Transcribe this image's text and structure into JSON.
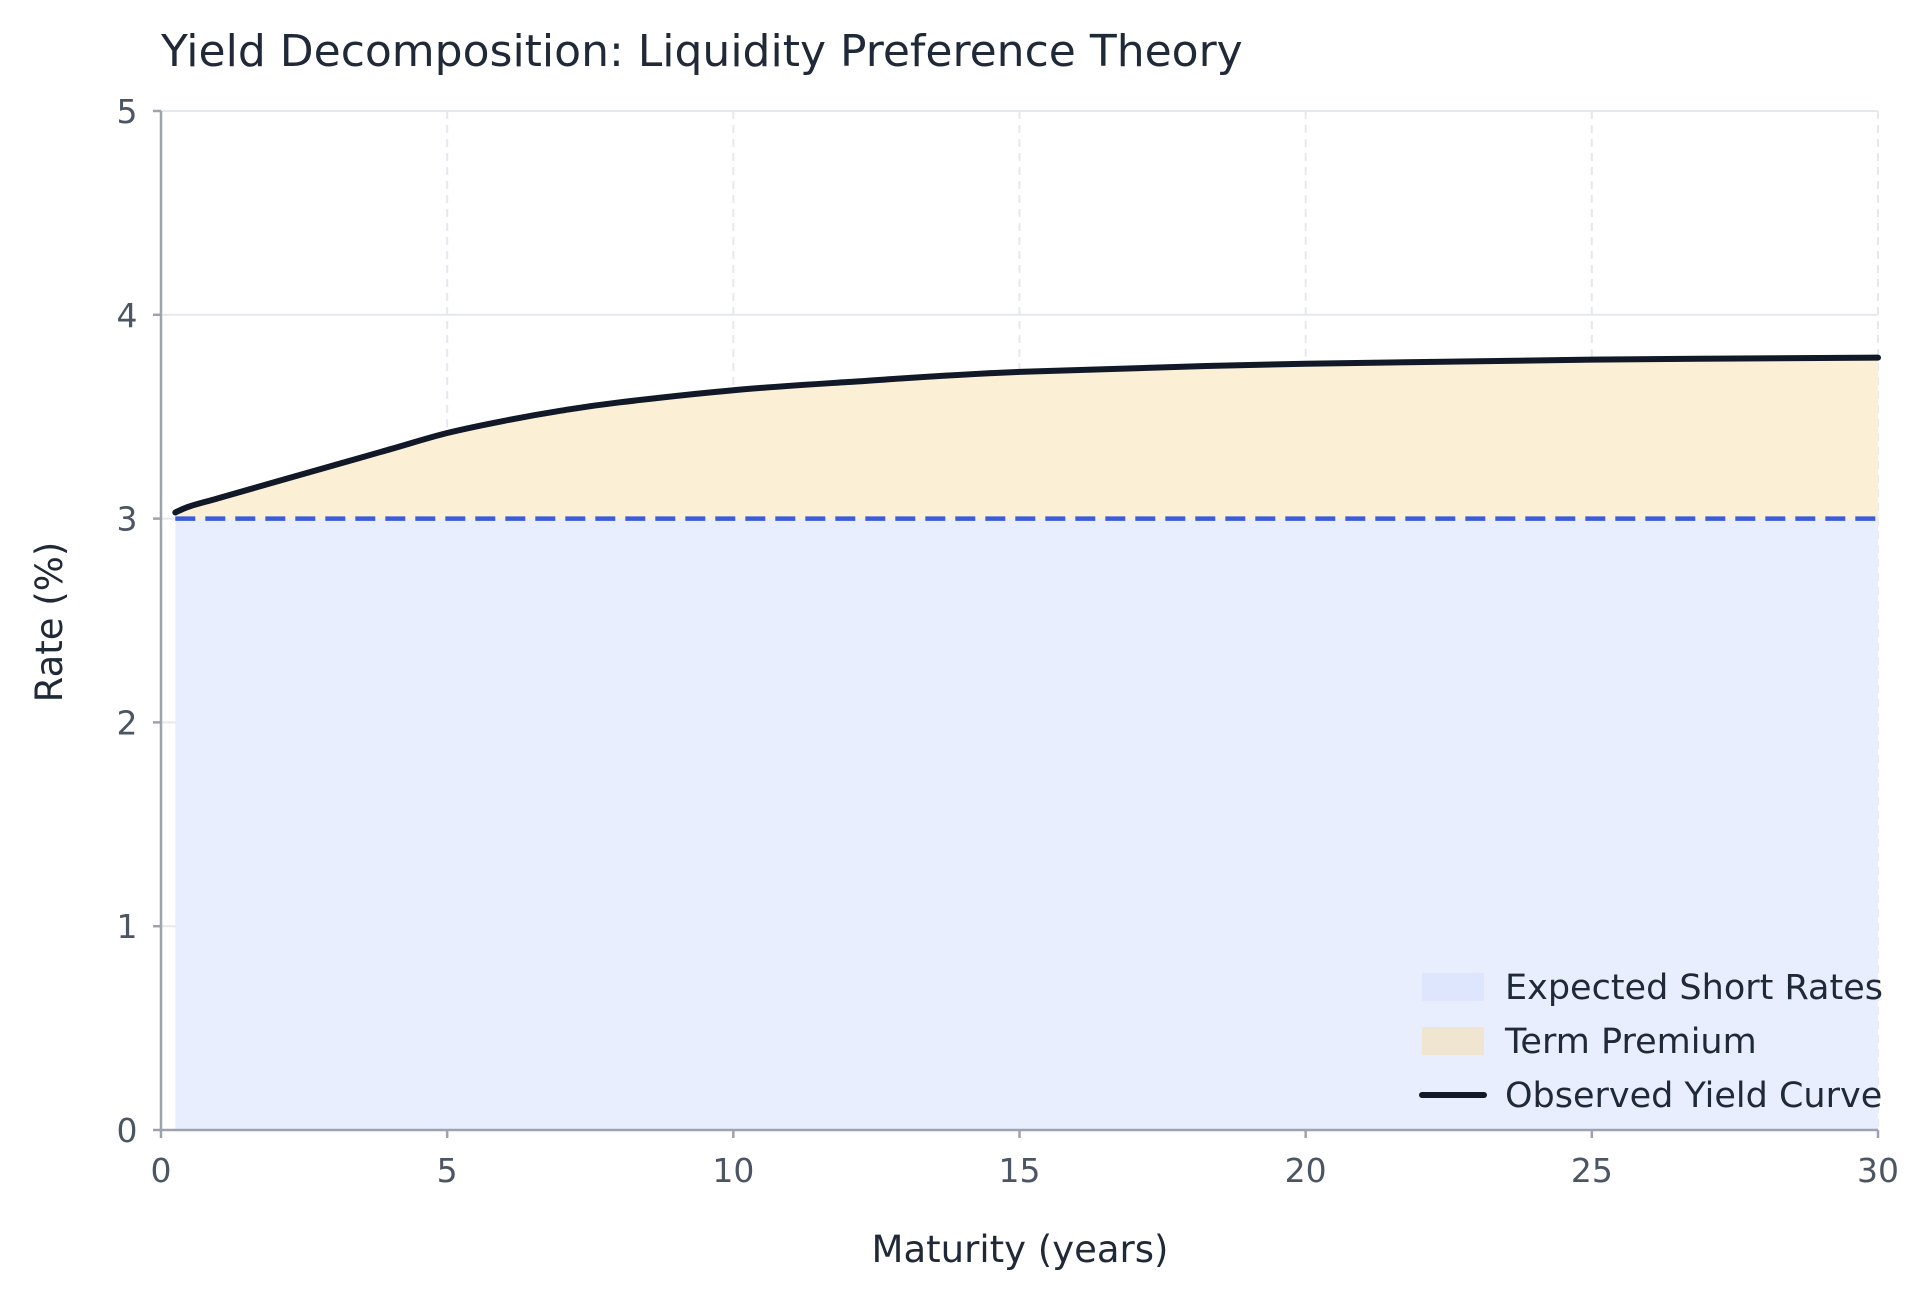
{
  "chart_data": {
    "type": "area",
    "title": "Yield Decomposition: Liquidity Preference Theory",
    "xlabel": "Maturity (years)",
    "ylabel": "Rate (%)",
    "xlim": [
      0,
      30
    ],
    "ylim": [
      0,
      5
    ],
    "xticks": [
      0,
      5,
      10,
      15,
      20,
      25,
      30
    ],
    "yticks": [
      0,
      1,
      2,
      3,
      4,
      5
    ],
    "grid": true,
    "legend_position": "bottom-right",
    "x": [
      0.25,
      0.5,
      1,
      2,
      3,
      4,
      5,
      6,
      7,
      8,
      10,
      12,
      15,
      20,
      25,
      30
    ],
    "series": [
      {
        "name": "Expected Short Rates",
        "style": "dashed-line-with-fill",
        "color": "#3b5bdb",
        "fill_color": "#e8eefe",
        "values": [
          3.0,
          3.0,
          3.0,
          3.0,
          3.0,
          3.0,
          3.0,
          3.0,
          3.0,
          3.0,
          3.0,
          3.0,
          3.0,
          3.0,
          3.0,
          3.0
        ]
      },
      {
        "name": "Term Premium",
        "style": "fill-between",
        "fill_color": "#fbefd5",
        "values": [
          0.03,
          0.06,
          0.1,
          0.18,
          0.26,
          0.34,
          0.42,
          0.48,
          0.53,
          0.57,
          0.63,
          0.67,
          0.72,
          0.76,
          0.78,
          0.79
        ]
      },
      {
        "name": "Observed Yield Curve",
        "style": "solid-line",
        "color": "#111827",
        "values": [
          3.03,
          3.06,
          3.1,
          3.18,
          3.26,
          3.34,
          3.42,
          3.48,
          3.53,
          3.57,
          3.63,
          3.67,
          3.72,
          3.76,
          3.78,
          3.79
        ]
      }
    ],
    "legend_swatch_colors": {
      "expected": "#dde6fc",
      "premium": "#efe5d0",
      "observed": "#111827"
    }
  }
}
